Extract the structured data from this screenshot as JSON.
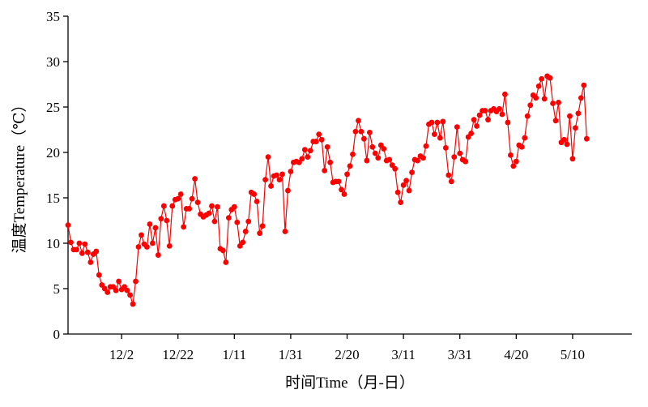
{
  "chart_data": {
    "type": "line",
    "title": "",
    "xlabel": "时间Time（月-日）",
    "ylabel": "温度Temperature（℃）",
    "ylim": [
      0,
      35
    ],
    "yticks": [
      "0",
      "5",
      "10",
      "15",
      "20",
      "25",
      "30",
      "35"
    ],
    "xlim": [
      "2023-11-13",
      "2024-05-31"
    ],
    "xticks": [
      {
        "date": "2023-12-02",
        "label": "12/2"
      },
      {
        "date": "2023-12-22",
        "label": "12/22"
      },
      {
        "date": "2024-01-11",
        "label": "1/11"
      },
      {
        "date": "2024-01-31",
        "label": "1/31"
      },
      {
        "date": "2024-02-20",
        "label": "2/20"
      },
      {
        "date": "2024-03-11",
        "label": "3/11"
      },
      {
        "date": "2024-03-31",
        "label": "3/31"
      },
      {
        "date": "2024-04-20",
        "label": "4/20"
      },
      {
        "date": "2024-05-10",
        "label": "5/10"
      }
    ],
    "grid": false,
    "legend": "none",
    "series": [
      {
        "color": "#ff0000",
        "marker": "circle",
        "start_date": "2023-11-13",
        "values": [
          12.0,
          10.1,
          9.3,
          9.3,
          10.0,
          8.9,
          9.9,
          9.0,
          7.9,
          8.8,
          9.1,
          6.5,
          5.4,
          5.0,
          4.6,
          5.2,
          5.2,
          4.8,
          5.8,
          4.9,
          5.2,
          4.8,
          4.3,
          3.3,
          5.8,
          9.6,
          10.9,
          9.9,
          9.6,
          12.1,
          10.0,
          11.7,
          8.7,
          12.7,
          14.1,
          12.5,
          9.7,
          14.1,
          14.8,
          14.9,
          15.4,
          11.8,
          13.8,
          13.8,
          14.9,
          17.1,
          14.5,
          13.2,
          12.9,
          13.1,
          13.3,
          14.1,
          12.4,
          14.0,
          9.4,
          9.2,
          7.9,
          12.8,
          13.7,
          14.0,
          12.3,
          9.7,
          10.1,
          11.3,
          12.4,
          15.6,
          15.4,
          14.6,
          11.1,
          11.9,
          17.0,
          19.5,
          16.3,
          17.4,
          17.5,
          17.0,
          17.6,
          11.3,
          15.8,
          17.9,
          18.9,
          19.0,
          18.9,
          19.3,
          20.3,
          19.5,
          20.2,
          21.2,
          21.2,
          22.0,
          21.4,
          18.0,
          20.6,
          18.9,
          16.7,
          16.8,
          16.8,
          15.9,
          15.4,
          17.6,
          18.5,
          19.8,
          22.3,
          23.5,
          22.3,
          21.5,
          19.1,
          22.2,
          20.6,
          19.9,
          19.4,
          20.8,
          20.4,
          19.1,
          19.2,
          18.6,
          18.2,
          15.6,
          14.5,
          16.4,
          16.9,
          15.8,
          17.8,
          19.2,
          19.1,
          19.6,
          19.4,
          20.7,
          23.1,
          23.3,
          22.0,
          23.3,
          21.6,
          23.4,
          20.5,
          17.5,
          16.8,
          19.5,
          22.8,
          19.9,
          19.2,
          19.0,
          21.7,
          22.1,
          23.6,
          22.9,
          24.1,
          24.6,
          24.6,
          23.6,
          24.6,
          24.8,
          24.5,
          24.8,
          24.2,
          26.4,
          23.3,
          19.7,
          18.5,
          19.0,
          20.8,
          20.6,
          21.6,
          24.0,
          25.2,
          26.3,
          26.0,
          27.3,
          28.1,
          25.9,
          28.4,
          28.2,
          25.4,
          23.5,
          25.5,
          21.1,
          21.4,
          20.9,
          24.0,
          19.3,
          22.7,
          24.3,
          26.0,
          27.4,
          21.5
        ]
      }
    ]
  }
}
